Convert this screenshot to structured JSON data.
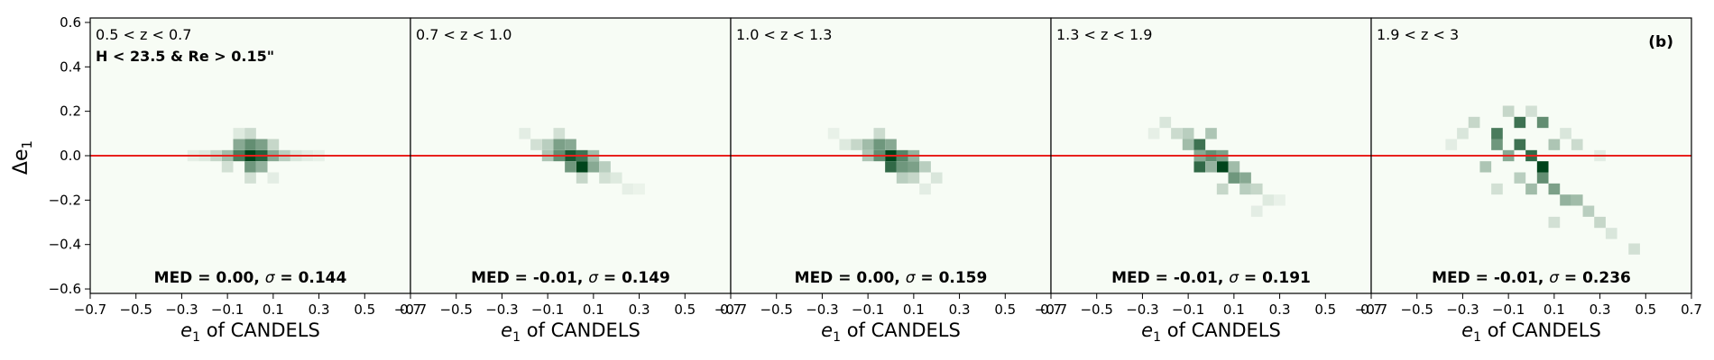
{
  "panel_label": "(b)",
  "selection_label": "H < 23.5 & Re > 0.15\"",
  "chart_data": [
    {
      "type": "heatmap",
      "title": "0.5 < z < 0.7",
      "stat_prefix": "MED = 0.00, ",
      "stat_sigma": "σ",
      "stat_suffix": " = 0.144",
      "median": 0.0,
      "sigma": 0.144,
      "xlabel_main": "e",
      "xlabel_sub": "1",
      "xlabel_rest": " of CANDELS",
      "ylabel_main": "Δe",
      "ylabel_sub": "1",
      "xlim": [
        -0.7,
        0.7
      ],
      "ylim": [
        -0.62,
        0.62
      ],
      "xticks": [
        "−0.7",
        "−0.5",
        "−0.3",
        "−0.1",
        "0.1",
        "0.3",
        "0.5",
        "0.7"
      ],
      "xtick_values": [
        -0.7,
        -0.5,
        -0.3,
        -0.1,
        0.1,
        0.3,
        0.5,
        0.7
      ],
      "yticks": [
        "−0.6",
        "−0.4",
        "−0.2",
        "0.0",
        "0.2",
        "0.4",
        "0.6"
      ],
      "ytick_values": [
        -0.6,
        -0.4,
        -0.2,
        0.0,
        0.2,
        0.4,
        0.6
      ],
      "reference_line_y": 0.0,
      "cells": [
        [
          0.0,
          0.0,
          1.0
        ],
        [
          0.05,
          0.0,
          0.85
        ],
        [
          -0.05,
          0.0,
          0.7
        ],
        [
          0.0,
          0.05,
          0.6
        ],
        [
          0.0,
          -0.05,
          0.55
        ],
        [
          0.05,
          0.05,
          0.5
        ],
        [
          -0.05,
          0.05,
          0.45
        ],
        [
          0.05,
          -0.05,
          0.4
        ],
        [
          0.1,
          0.0,
          0.45
        ],
        [
          -0.1,
          0.0,
          0.35
        ],
        [
          0.15,
          0.0,
          0.25
        ],
        [
          -0.15,
          0.0,
          0.2
        ],
        [
          0.2,
          0.0,
          0.12
        ],
        [
          -0.2,
          0.0,
          0.1
        ],
        [
          0.0,
          0.1,
          0.18
        ],
        [
          0.0,
          -0.1,
          0.15
        ],
        [
          0.1,
          0.05,
          0.2
        ],
        [
          -0.1,
          -0.05,
          0.15
        ],
        [
          0.25,
          0.0,
          0.08
        ],
        [
          -0.25,
          0.0,
          0.07
        ],
        [
          0.3,
          0.0,
          0.06
        ],
        [
          0.1,
          -0.1,
          0.08
        ],
        [
          -0.05,
          0.1,
          0.1
        ]
      ]
    },
    {
      "type": "heatmap",
      "title": "0.7 < z < 1.0",
      "stat_prefix": "MED = -0.01, ",
      "stat_sigma": "σ",
      "stat_suffix": " = 0.149",
      "median": -0.01,
      "sigma": 0.149,
      "xlabel_main": "e",
      "xlabel_sub": "1",
      "xlabel_rest": " of CANDELS",
      "xlim": [
        -0.7,
        0.7
      ],
      "ylim": [
        -0.62,
        0.62
      ],
      "xticks": [
        "−0.7",
        "−0.5",
        "−0.3",
        "−0.1",
        "0.1",
        "0.3",
        "0.5",
        "0.7"
      ],
      "xtick_values": [
        -0.7,
        -0.5,
        -0.3,
        -0.1,
        0.1,
        0.3,
        0.5,
        0.7
      ],
      "reference_line_y": 0.0,
      "cells": [
        [
          0.0,
          0.0,
          0.9
        ],
        [
          0.05,
          -0.05,
          1.0
        ],
        [
          0.05,
          0.0,
          0.75
        ],
        [
          -0.05,
          0.0,
          0.6
        ],
        [
          0.0,
          -0.05,
          0.55
        ],
        [
          -0.05,
          0.05,
          0.5
        ],
        [
          0.1,
          -0.05,
          0.45
        ],
        [
          0.0,
          0.05,
          0.45
        ],
        [
          -0.1,
          0.0,
          0.3
        ],
        [
          0.1,
          0.0,
          0.35
        ],
        [
          0.15,
          -0.05,
          0.25
        ],
        [
          -0.1,
          0.05,
          0.25
        ],
        [
          -0.15,
          0.05,
          0.15
        ],
        [
          0.15,
          -0.1,
          0.15
        ],
        [
          0.05,
          -0.1,
          0.2
        ],
        [
          -0.05,
          0.1,
          0.15
        ],
        [
          0.2,
          -0.1,
          0.1
        ],
        [
          -0.2,
          0.1,
          0.08
        ],
        [
          0.25,
          -0.15,
          0.07
        ],
        [
          0.3,
          -0.15,
          0.05
        ]
      ]
    },
    {
      "type": "heatmap",
      "title": "1.0 < z < 1.3",
      "stat_prefix": "MED = 0.00, ",
      "stat_sigma": "σ",
      "stat_suffix": " = 0.159",
      "median": 0.0,
      "sigma": 0.159,
      "xlabel_main": "e",
      "xlabel_sub": "1",
      "xlabel_rest": " of CANDELS",
      "xlim": [
        -0.7,
        0.7
      ],
      "ylim": [
        -0.62,
        0.62
      ],
      "xticks": [
        "−0.7",
        "−0.5",
        "−0.3",
        "−0.1",
        "0.1",
        "0.3",
        "0.5",
        "0.7"
      ],
      "xtick_values": [
        -0.7,
        -0.5,
        -0.3,
        -0.1,
        0.1,
        0.3,
        0.5,
        0.7
      ],
      "reference_line_y": 0.0,
      "cells": [
        [
          0.0,
          0.0,
          1.0
        ],
        [
          0.0,
          -0.05,
          0.8
        ],
        [
          0.05,
          0.0,
          0.65
        ],
        [
          -0.05,
          0.0,
          0.6
        ],
        [
          0.05,
          -0.05,
          0.55
        ],
        [
          -0.05,
          0.05,
          0.55
        ],
        [
          0.1,
          -0.05,
          0.5
        ],
        [
          0.1,
          0.0,
          0.4
        ],
        [
          -0.1,
          0.05,
          0.35
        ],
        [
          0.0,
          0.05,
          0.45
        ],
        [
          -0.1,
          0.0,
          0.3
        ],
        [
          0.15,
          -0.05,
          0.25
        ],
        [
          -0.15,
          0.05,
          0.2
        ],
        [
          0.05,
          -0.1,
          0.25
        ],
        [
          0.1,
          -0.1,
          0.2
        ],
        [
          -0.05,
          0.1,
          0.18
        ],
        [
          0.2,
          -0.1,
          0.12
        ],
        [
          -0.2,
          0.05,
          0.1
        ],
        [
          0.15,
          -0.15,
          0.08
        ],
        [
          -0.25,
          0.1,
          0.06
        ]
      ]
    },
    {
      "type": "heatmap",
      "title": "1.3 < z < 1.9",
      "stat_prefix": "MED = -0.01, ",
      "stat_sigma": "σ",
      "stat_suffix": " = 0.191",
      "median": -0.01,
      "sigma": 0.191,
      "xlabel_main": "e",
      "xlabel_sub": "1",
      "xlabel_rest": " of CANDELS",
      "xlim": [
        -0.7,
        0.7
      ],
      "ylim": [
        -0.62,
        0.62
      ],
      "xticks": [
        "−0.7",
        "−0.5",
        "−0.3",
        "−0.1",
        "0.1",
        "0.3",
        "0.5",
        "0.7"
      ],
      "xtick_values": [
        -0.7,
        -0.5,
        -0.3,
        -0.1,
        0.1,
        0.3,
        0.5,
        0.7
      ],
      "reference_line_y": 0.0,
      "cells": [
        [
          0.05,
          -0.05,
          1.0
        ],
        [
          -0.05,
          -0.05,
          0.8
        ],
        [
          -0.05,
          0.05,
          0.75
        ],
        [
          0.0,
          0.0,
          0.6
        ],
        [
          0.05,
          0.0,
          0.5
        ],
        [
          0.1,
          -0.1,
          0.55
        ],
        [
          0.15,
          -0.1,
          0.45
        ],
        [
          -0.05,
          0.0,
          0.45
        ],
        [
          0.0,
          -0.05,
          0.4
        ],
        [
          -0.1,
          0.05,
          0.35
        ],
        [
          0.1,
          -0.05,
          0.35
        ],
        [
          0.0,
          0.1,
          0.3
        ],
        [
          -0.1,
          0.1,
          0.25
        ],
        [
          0.15,
          -0.15,
          0.25
        ],
        [
          0.2,
          -0.15,
          0.2
        ],
        [
          -0.15,
          0.1,
          0.18
        ],
        [
          0.05,
          -0.15,
          0.2
        ],
        [
          -0.2,
          0.15,
          0.12
        ],
        [
          0.25,
          -0.2,
          0.1
        ],
        [
          0.2,
          -0.25,
          0.08
        ],
        [
          0.3,
          -0.2,
          0.06
        ],
        [
          -0.25,
          0.1,
          0.07
        ]
      ]
    },
    {
      "type": "heatmap",
      "title": "1.9 < z < 3",
      "stat_prefix": "MED = -0.01, ",
      "stat_sigma": "σ",
      "stat_suffix": " = 0.236",
      "median": -0.01,
      "sigma": 0.236,
      "xlabel_main": "e",
      "xlabel_sub": "1",
      "xlabel_rest": " of CANDELS",
      "xlim": [
        -0.7,
        0.7
      ],
      "ylim": [
        -0.62,
        0.62
      ],
      "xticks": [
        "−0.7",
        "−0.5",
        "−0.3",
        "−0.1",
        "0.1",
        "0.3",
        "0.5",
        "0.7"
      ],
      "xtick_values": [
        -0.7,
        -0.5,
        -0.3,
        -0.1,
        0.1,
        0.3,
        0.5,
        0.7
      ],
      "reference_line_y": 0.0,
      "cells": [
        [
          0.05,
          -0.05,
          1.0
        ],
        [
          0.0,
          0.0,
          0.8
        ],
        [
          -0.05,
          0.05,
          0.75
        ],
        [
          -0.05,
          0.15,
          0.75
        ],
        [
          0.05,
          0.15,
          0.6
        ],
        [
          -0.15,
          0.1,
          0.7
        ],
        [
          -0.15,
          0.05,
          0.55
        ],
        [
          0.05,
          -0.1,
          0.6
        ],
        [
          0.1,
          -0.15,
          0.5
        ],
        [
          -0.1,
          0.0,
          0.45
        ],
        [
          0.15,
          -0.2,
          0.4
        ],
        [
          0.2,
          -0.2,
          0.35
        ],
        [
          0.0,
          -0.15,
          0.35
        ],
        [
          -0.2,
          -0.05,
          0.3
        ],
        [
          0.25,
          -0.25,
          0.25
        ],
        [
          0.3,
          -0.3,
          0.2
        ],
        [
          -0.25,
          0.15,
          0.2
        ],
        [
          0.1,
          0.05,
          0.3
        ],
        [
          -0.05,
          -0.1,
          0.25
        ],
        [
          0.2,
          0.05,
          0.18
        ],
        [
          -0.3,
          0.1,
          0.12
        ],
        [
          0.35,
          -0.35,
          0.12
        ],
        [
          0.45,
          -0.42,
          0.15
        ],
        [
          -0.15,
          -0.15,
          0.15
        ],
        [
          0.1,
          -0.3,
          0.15
        ],
        [
          -0.1,
          0.2,
          0.2
        ],
        [
          0.0,
          0.2,
          0.15
        ],
        [
          0.15,
          0.1,
          0.12
        ],
        [
          -0.35,
          0.05,
          0.08
        ],
        [
          0.3,
          0.0,
          0.08
        ]
      ]
    }
  ]
}
